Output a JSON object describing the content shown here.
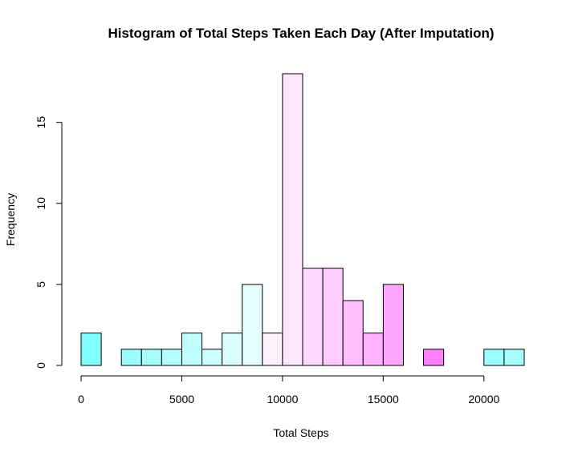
{
  "chart_data": {
    "type": "bar",
    "title": "Histogram of Total Steps Taken Each Day (After Imputation)",
    "xlabel": "Total Steps",
    "ylabel": "Frequency",
    "xlim": [
      0,
      22000
    ],
    "ylim": [
      0,
      18
    ],
    "bin_width": 1000,
    "bin_starts": [
      0,
      1000,
      2000,
      3000,
      4000,
      5000,
      6000,
      7000,
      8000,
      9000,
      10000,
      11000,
      12000,
      13000,
      14000,
      15000,
      16000,
      17000,
      18000,
      19000,
      20000,
      21000
    ],
    "values": [
      2,
      0,
      1,
      1,
      1,
      2,
      1,
      2,
      5,
      2,
      18,
      6,
      6,
      4,
      2,
      5,
      0,
      1,
      0,
      0,
      1,
      1
    ],
    "bar_colors": [
      "#80FFFF",
      "#8CFFFF",
      "#99FFFF",
      "#A6FFFF",
      "#B3FFFF",
      "#BFFFFF",
      "#CCFFFF",
      "#D9FFFF",
      "#E6FFFF",
      "#FFF2FF",
      "#FFE6FF",
      "#FFD9FF",
      "#FFCCFF",
      "#FFBFFF",
      "#FFB3FF",
      "#FFA6FF",
      "#FF99FF",
      "#FF80FF",
      "#FF8CFF",
      "#80FFFF",
      "#99FFFF",
      "#A6FFFF"
    ],
    "x_ticks": [
      0,
      5000,
      10000,
      15000,
      20000
    ],
    "x_tick_labels": [
      "0",
      "5000",
      "10000",
      "15000",
      "20000"
    ],
    "y_ticks": [
      0,
      5,
      10,
      15
    ],
    "y_tick_labels": [
      "0",
      "5",
      "10",
      "15"
    ],
    "grid": false,
    "legend": "none"
  }
}
